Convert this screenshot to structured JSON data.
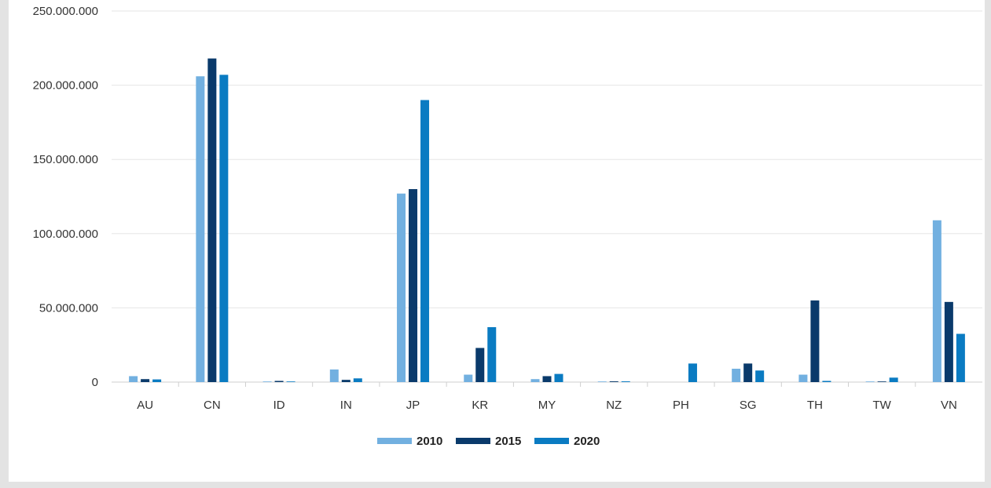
{
  "chart_data": {
    "type": "bar",
    "title": "",
    "xlabel": "",
    "ylabel": "",
    "categories": [
      "AU",
      "CN",
      "ID",
      "IN",
      "JP",
      "KR",
      "MY",
      "NZ",
      "PH",
      "SG",
      "TH",
      "TW",
      "VN"
    ],
    "series": [
      {
        "name": "2010",
        "color": "#72b0e0",
        "values": [
          4000000,
          206000000,
          300000,
          8500000,
          127000000,
          5000000,
          2000000,
          400000,
          0,
          9000000,
          5000000,
          400000,
          109000000
        ]
      },
      {
        "name": "2015",
        "color": "#0a3a6b",
        "values": [
          2000000,
          218000000,
          800000,
          1500000,
          130000000,
          23000000,
          4000000,
          500000,
          0,
          12500000,
          55000000,
          400000,
          54000000
        ]
      },
      {
        "name": "2020",
        "color": "#0a7bc2",
        "values": [
          1800000,
          207000000,
          400000,
          2500000,
          190000000,
          37000000,
          5500000,
          500000,
          12500000,
          7800000,
          800000,
          3000000,
          32500000
        ]
      }
    ],
    "ylim": [
      0,
      250000000
    ],
    "yticks": [
      0,
      50000000,
      100000000,
      150000000,
      200000000,
      250000000
    ],
    "ytick_labels": [
      "0",
      "50.000.000",
      "100.000.000",
      "150.000.000",
      "200.000.000",
      "250.000.000"
    ],
    "grid": true,
    "legend_position": "bottom-center"
  }
}
